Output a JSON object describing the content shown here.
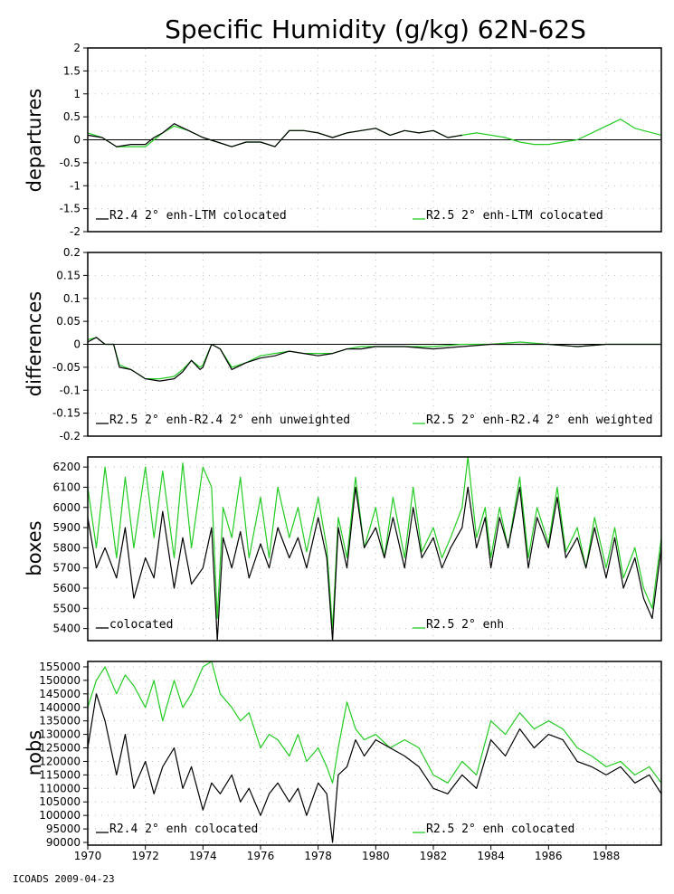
{
  "figure": {
    "title": "Specific Humidity (g/kg) 62N-62S",
    "footer": "ICOADS 2009-04-23",
    "x_ticks": [
      "1970",
      "1972",
      "1974",
      "1976",
      "1978",
      "1980",
      "1982",
      "1984",
      "1986",
      "1988"
    ]
  },
  "colors": {
    "series_a": "#000000",
    "series_b": "#22cc22",
    "zero_line": "#000000",
    "grid": "#bbbbbb"
  },
  "chart_data": [
    {
      "type": "line",
      "ylabel": "departures",
      "xlim": [
        1970,
        1989.917
      ],
      "ylim": [
        -2,
        2
      ],
      "y_ticks": [
        "2",
        "1.5",
        "1",
        "0.5",
        "0",
        "-0.5",
        "-1",
        "-1.5",
        "-2"
      ],
      "zero_line": true,
      "grid": "dotted",
      "legend": "bottom",
      "series": [
        {
          "name": "R2.4 2° enh-LTM colocated",
          "x_end": 1983.0,
          "x": [
            1970,
            1970.5,
            1971,
            1971.5,
            1972,
            1972.3,
            1972.6,
            1973,
            1973.5,
            1974,
            1974.5,
            1975,
            1975.5,
            1976,
            1976.5,
            1977,
            1977.5,
            1978,
            1978.5,
            1979,
            1979.5,
            1980,
            1980.5,
            1981,
            1981.5,
            1982,
            1982.5,
            1983
          ],
          "y": [
            0.1,
            0.05,
            -0.15,
            -0.1,
            -0.1,
            0.05,
            0.15,
            0.35,
            0.2,
            0.05,
            -0.05,
            -0.15,
            -0.05,
            -0.05,
            -0.15,
            0.2,
            0.2,
            0.15,
            0.05,
            0.15,
            0.2,
            0.25,
            0.1,
            0.2,
            0.15,
            0.2,
            0.05,
            0.1
          ]
        },
        {
          "name": "R2.5 2° enh-LTM colocated",
          "x": [
            1970,
            1970.5,
            1971,
            1971.5,
            1972,
            1972.3,
            1972.6,
            1973,
            1973.5,
            1974,
            1974.5,
            1975,
            1975.5,
            1976,
            1976.5,
            1977,
            1977.5,
            1978,
            1978.5,
            1979,
            1979.5,
            1980,
            1980.5,
            1981,
            1981.5,
            1982,
            1982.5,
            1983,
            1983.5,
            1984,
            1984.5,
            1985,
            1985.5,
            1986,
            1986.5,
            1987,
            1987.5,
            1988,
            1988.5,
            1989,
            1989.917
          ],
          "y": [
            0.15,
            0.05,
            -0.15,
            -0.15,
            -0.15,
            0.0,
            0.15,
            0.3,
            0.2,
            0.05,
            -0.05,
            -0.15,
            -0.05,
            -0.05,
            -0.15,
            0.2,
            0.2,
            0.15,
            0.05,
            0.15,
            0.2,
            0.25,
            0.1,
            0.2,
            0.15,
            0.2,
            0.05,
            0.1,
            0.15,
            0.1,
            0.05,
            -0.05,
            -0.1,
            -0.1,
            -0.05,
            0.0,
            0.15,
            0.3,
            0.45,
            0.25,
            0.1
          ]
        }
      ]
    },
    {
      "type": "line",
      "ylabel": "differences",
      "xlim": [
        1970,
        1989.917
      ],
      "ylim": [
        -0.2,
        0.2
      ],
      "y_ticks": [
        "0.2",
        "0.15",
        "0.1",
        "0.05",
        "0",
        "-0.05",
        "-0.1",
        "-0.15",
        "-0.2"
      ],
      "zero_line": true,
      "grid": "dotted",
      "legend": "bottom",
      "series": [
        {
          "name": "R2.5 2° enh-R2.4 2° enh unweighted",
          "x": [
            1970,
            1970.3,
            1970.6,
            1970.9,
            1971.1,
            1971.5,
            1972,
            1972.5,
            1973,
            1973.3,
            1973.6,
            1973.9,
            1974,
            1974.3,
            1974.6,
            1975,
            1975.5,
            1976,
            1976.5,
            1977,
            1977.5,
            1978,
            1978.5,
            1979,
            1979.5,
            1980,
            1981,
            1982,
            1983,
            1984,
            1985,
            1986,
            1987,
            1988,
            1989,
            1989.917
          ],
          "y": [
            0.005,
            0.015,
            0.0,
            0.0,
            -0.05,
            -0.055,
            -0.075,
            -0.08,
            -0.075,
            -0.06,
            -0.035,
            -0.055,
            -0.05,
            0.0,
            -0.01,
            -0.055,
            -0.04,
            -0.03,
            -0.025,
            -0.015,
            -0.02,
            -0.025,
            -0.02,
            -0.01,
            -0.01,
            -0.005,
            -0.005,
            -0.01,
            -0.005,
            0.0,
            0.0,
            0.0,
            -0.005,
            0.0,
            0.0,
            0.0
          ]
        },
        {
          "name": "R2.5 2° enh-R2.4 2° enh weighted",
          "x": [
            1970,
            1970.3,
            1970.6,
            1970.9,
            1971.1,
            1971.5,
            1972,
            1972.5,
            1973,
            1973.3,
            1973.6,
            1973.9,
            1974,
            1974.3,
            1974.6,
            1975,
            1975.5,
            1976,
            1976.5,
            1977,
            1977.5,
            1978,
            1978.5,
            1979,
            1979.5,
            1980,
            1981,
            1982,
            1983,
            1984,
            1985,
            1986,
            1987,
            1988,
            1989,
            1989.917
          ],
          "y": [
            0.01,
            0.015,
            0.0,
            0.0,
            -0.045,
            -0.055,
            -0.075,
            -0.075,
            -0.07,
            -0.055,
            -0.035,
            -0.05,
            -0.045,
            0.0,
            -0.01,
            -0.05,
            -0.04,
            -0.025,
            -0.02,
            -0.015,
            -0.02,
            -0.02,
            -0.02,
            -0.01,
            -0.005,
            -0.005,
            -0.005,
            -0.005,
            0.0,
            0.0,
            0.005,
            0.0,
            -0.005,
            0.0,
            0.0,
            0.0
          ]
        }
      ]
    },
    {
      "type": "line",
      "ylabel": "boxes",
      "xlim": [
        1970,
        1989.917
      ],
      "ylim": [
        5340,
        6250
      ],
      "y_ticks": [
        "6200",
        "6100",
        "6000",
        "5900",
        "5800",
        "5700",
        "5600",
        "5500",
        "5400"
      ],
      "zero_line": false,
      "grid": "dotted",
      "legend": "bottom",
      "series": [
        {
          "name": "colocated",
          "x": [
            1970,
            1970.3,
            1970.6,
            1971,
            1971.3,
            1971.6,
            1972,
            1972.3,
            1972.6,
            1973,
            1973.3,
            1973.6,
            1974,
            1974.3,
            1974.5,
            1974.7,
            1975,
            1975.3,
            1975.6,
            1976,
            1976.3,
            1976.6,
            1977,
            1977.3,
            1977.6,
            1978,
            1978.3,
            1978.5,
            1978.7,
            1979,
            1979.3,
            1979.6,
            1980,
            1980.3,
            1980.6,
            1981,
            1981.3,
            1981.6,
            1982,
            1982.3,
            1982.6,
            1983,
            1983.2,
            1983.5,
            1983.8,
            1984,
            1984.3,
            1984.6,
            1985,
            1985.3,
            1985.6,
            1986,
            1986.3,
            1986.6,
            1987,
            1987.3,
            1987.6,
            1988,
            1988.3,
            1988.6,
            1989,
            1989.3,
            1989.6,
            1989.917
          ],
          "y": [
            5950,
            5700,
            5800,
            5650,
            5900,
            5550,
            5750,
            5650,
            5980,
            5600,
            5850,
            5620,
            5700,
            5900,
            5340,
            5850,
            5700,
            5880,
            5650,
            5820,
            5700,
            5900,
            5750,
            5850,
            5700,
            5950,
            5750,
            5340,
            5900,
            5700,
            6100,
            5800,
            5900,
            5750,
            5950,
            5700,
            6000,
            5750,
            5850,
            5700,
            5800,
            5900,
            6100,
            5800,
            5950,
            5700,
            5950,
            5800,
            6100,
            5700,
            5950,
            5800,
            6050,
            5750,
            5850,
            5700,
            5900,
            5650,
            5850,
            5600,
            5750,
            5550,
            5450,
            5800
          ]
        },
        {
          "name": "R2.5 2° enh",
          "x": [
            1970,
            1970.3,
            1970.6,
            1971,
            1971.3,
            1971.6,
            1972,
            1972.3,
            1972.6,
            1973,
            1973.3,
            1973.6,
            1974,
            1974.3,
            1974.5,
            1974.7,
            1975,
            1975.3,
            1975.6,
            1976,
            1976.3,
            1976.6,
            1977,
            1977.3,
            1977.6,
            1978,
            1978.3,
            1978.5,
            1978.7,
            1979,
            1979.3,
            1979.6,
            1980,
            1980.3,
            1980.6,
            1981,
            1981.3,
            1981.6,
            1982,
            1982.3,
            1982.6,
            1983,
            1983.2,
            1983.5,
            1983.8,
            1984,
            1984.3,
            1984.6,
            1985,
            1985.3,
            1985.6,
            1986,
            1986.3,
            1986.6,
            1987,
            1987.3,
            1987.6,
            1988,
            1988.3,
            1988.6,
            1989,
            1989.3,
            1989.6,
            1989.917
          ],
          "y": [
            6100,
            5800,
            6200,
            5750,
            6150,
            5800,
            6200,
            5850,
            6180,
            5750,
            6220,
            5800,
            6200,
            6100,
            5450,
            6000,
            5850,
            6150,
            5750,
            6050,
            5750,
            6100,
            5850,
            6000,
            5780,
            6050,
            5800,
            5400,
            5950,
            5750,
            6150,
            5800,
            6000,
            5750,
            6050,
            5750,
            6100,
            5780,
            5900,
            5750,
            5850,
            6000,
            6250,
            5850,
            6000,
            5750,
            6000,
            5800,
            6150,
            5750,
            6000,
            5820,
            6100,
            5780,
            5900,
            5700,
            5950,
            5700,
            5900,
            5650,
            5800,
            5600,
            5500,
            5850
          ]
        }
      ]
    },
    {
      "type": "line",
      "ylabel": "nobs",
      "xlim": [
        1970,
        1989.917
      ],
      "ylim": [
        89000,
        157000
      ],
      "y_ticks": [
        "155000",
        "150000",
        "145000",
        "140000",
        "135000",
        "130000",
        "125000",
        "120000",
        "115000",
        "110000",
        "105000",
        "100000",
        "95000",
        "90000"
      ],
      "zero_line": false,
      "grid": "dotted",
      "legend": "bottom",
      "series": [
        {
          "name": "R2.4 2° enh colocated",
          "x": [
            1970,
            1970.3,
            1970.6,
            1971,
            1971.3,
            1971.6,
            1972,
            1972.3,
            1972.6,
            1973,
            1973.3,
            1973.6,
            1974,
            1974.3,
            1974.6,
            1975,
            1975.3,
            1975.6,
            1976,
            1976.3,
            1976.6,
            1977,
            1977.3,
            1977.6,
            1978,
            1978.3,
            1978.5,
            1978.7,
            1979,
            1979.3,
            1979.6,
            1980,
            1980.5,
            1981,
            1981.5,
            1982,
            1982.5,
            1983,
            1983.5,
            1984,
            1984.5,
            1985,
            1985.5,
            1986,
            1986.5,
            1987,
            1987.5,
            1988,
            1988.5,
            1989,
            1989.5,
            1989.917
          ],
          "y": [
            125000,
            145000,
            135000,
            115000,
            130000,
            110000,
            120000,
            108000,
            118000,
            125000,
            110000,
            118000,
            102000,
            112000,
            108000,
            115000,
            105000,
            110000,
            100000,
            108000,
            112000,
            105000,
            110000,
            100000,
            112000,
            108000,
            90000,
            115000,
            118000,
            128000,
            122000,
            128000,
            125000,
            122000,
            118000,
            110000,
            108000,
            115000,
            110000,
            128000,
            122000,
            132000,
            125000,
            130000,
            128000,
            120000,
            118000,
            115000,
            118000,
            112000,
            115000,
            108000
          ]
        },
        {
          "name": "R2.5 2° enh colocated",
          "x": [
            1970,
            1970.3,
            1970.6,
            1971,
            1971.3,
            1971.6,
            1972,
            1972.3,
            1972.6,
            1973,
            1973.3,
            1973.6,
            1974,
            1974.3,
            1974.6,
            1975,
            1975.3,
            1975.6,
            1976,
            1976.3,
            1976.6,
            1977,
            1977.3,
            1977.6,
            1978,
            1978.3,
            1978.5,
            1978.7,
            1979,
            1979.3,
            1979.6,
            1980,
            1980.5,
            1981,
            1981.5,
            1982,
            1982.5,
            1983,
            1983.5,
            1984,
            1984.5,
            1985,
            1985.5,
            1986,
            1986.5,
            1987,
            1987.5,
            1988,
            1988.5,
            1989,
            1989.5,
            1989.917
          ],
          "y": [
            140000,
            150000,
            155000,
            145000,
            152000,
            148000,
            140000,
            150000,
            135000,
            150000,
            140000,
            145000,
            155000,
            157000,
            145000,
            140000,
            135000,
            138000,
            125000,
            130000,
            128000,
            122000,
            130000,
            120000,
            125000,
            118000,
            112000,
            125000,
            142000,
            132000,
            128000,
            130000,
            125000,
            128000,
            125000,
            115000,
            112000,
            120000,
            115000,
            135000,
            130000,
            138000,
            132000,
            135000,
            132000,
            125000,
            122000,
            118000,
            120000,
            115000,
            118000,
            112000
          ]
        }
      ]
    }
  ]
}
